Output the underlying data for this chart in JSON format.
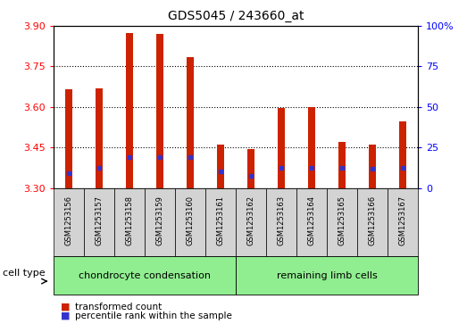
{
  "title": "GDS5045 / 243660_at",
  "samples": [
    "GSM1253156",
    "GSM1253157",
    "GSM1253158",
    "GSM1253159",
    "GSM1253160",
    "GSM1253161",
    "GSM1253162",
    "GSM1253163",
    "GSM1253164",
    "GSM1253165",
    "GSM1253166",
    "GSM1253167"
  ],
  "red_values": [
    3.665,
    3.67,
    3.875,
    3.87,
    3.785,
    3.46,
    3.445,
    3.595,
    3.6,
    3.47,
    3.46,
    3.545
  ],
  "blue_values": [
    3.355,
    3.375,
    3.415,
    3.415,
    3.415,
    3.36,
    3.345,
    3.375,
    3.375,
    3.375,
    3.37,
    3.375
  ],
  "ymin": 3.3,
  "ymax": 3.9,
  "yticks": [
    3.3,
    3.45,
    3.6,
    3.75,
    3.9
  ],
  "y2ticks": [
    0,
    25,
    50,
    75,
    100
  ],
  "group1_label": "chondrocyte condensation",
  "group2_label": "remaining limb cells",
  "group_color": "#90ee90",
  "bar_color": "#cc2200",
  "blue_color": "#3333cc",
  "plot_bg": "#ffffff",
  "cell_type_label": "cell type",
  "legend_red": "transformed count",
  "legend_blue": "percentile rank within the sample",
  "bar_width": 0.25
}
